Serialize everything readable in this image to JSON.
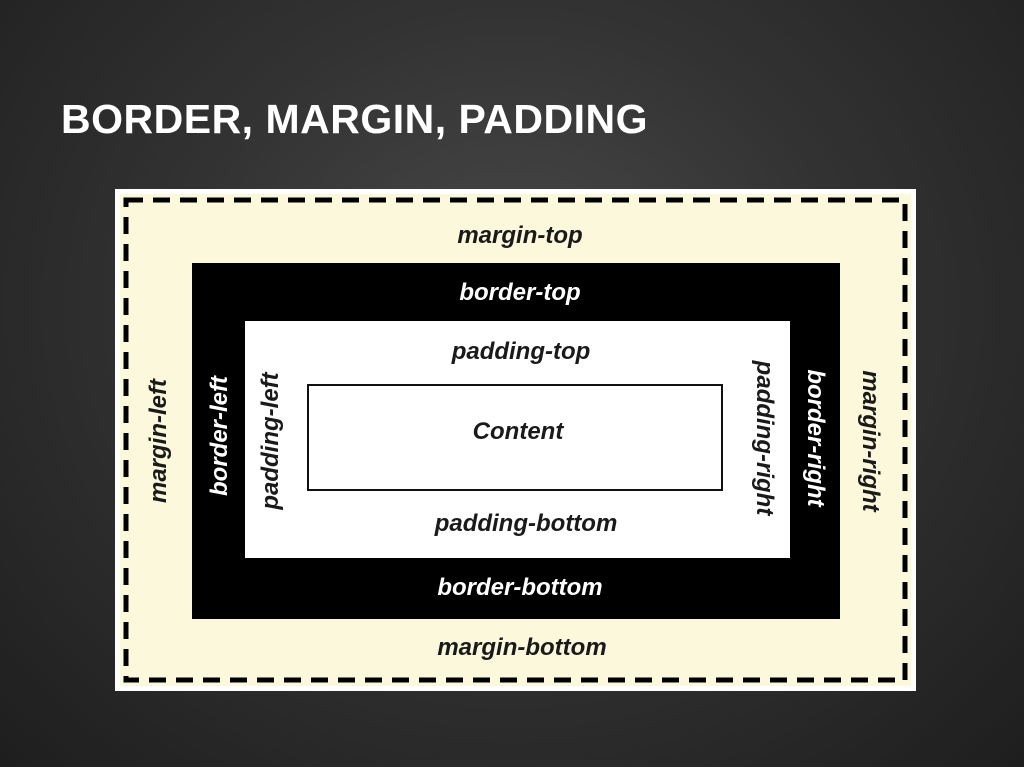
{
  "slide": {
    "title": "BORDER, MARGIN, PADDING"
  },
  "diagram": {
    "margin": {
      "top": "margin-top",
      "bottom": "margin-bottom",
      "left": "margin-left",
      "right": "margin-right",
      "fill_color": "#fbf8dc",
      "outline_style": "dashed"
    },
    "border": {
      "top": "border-top",
      "bottom": "border-bottom",
      "left": "border-left",
      "right": "border-right",
      "fill_color": "#000000"
    },
    "padding": {
      "top": "padding-top",
      "bottom": "padding-bottom",
      "left": "padding-left",
      "right": "padding-right",
      "fill_color": "#ffffff"
    },
    "content": {
      "label": "Content"
    }
  }
}
